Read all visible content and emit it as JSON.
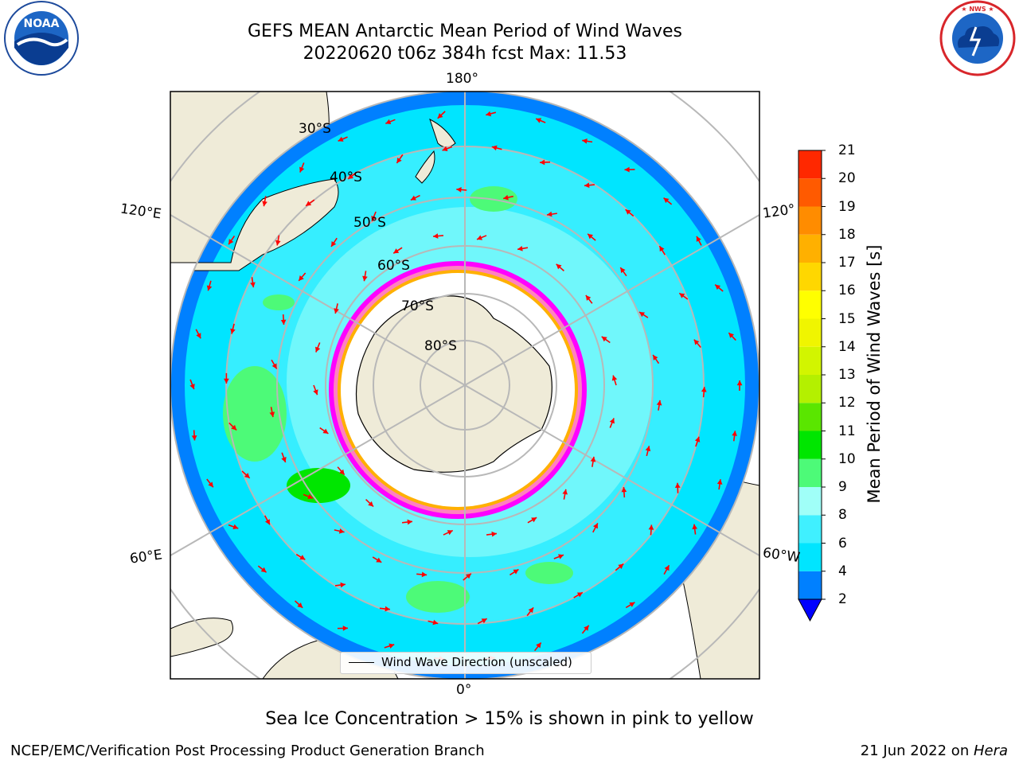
{
  "title": {
    "line1": "GEFS MEAN Antarctic Mean Period of Wind Waves",
    "line2": "20220620 t06z 384h fcst   Max: 11.53"
  },
  "logos": {
    "left": {
      "name": "noaa-logo",
      "text": "NOAA",
      "ring_text": "NATIONAL OCEANIC AND ATMOSPHERIC ADMINISTRATION · U.S. DEPARTMENT OF COMMERCE"
    },
    "right": {
      "name": "nws-logo",
      "ring_text": "NATIONAL WEATHER SERVICE"
    }
  },
  "map": {
    "projection": "south polar stereographic",
    "longitude_labels": {
      "top": "180°",
      "bottom": "0°",
      "upper_left": "120°E",
      "lower_left": "60°E",
      "upper_right": "120°",
      "lower_right": "60°W"
    },
    "latitude_labels": [
      "30°S",
      "40°S",
      "50°S",
      "60°S",
      "70°S",
      "80°S"
    ],
    "land_color": "#efebd8",
    "ocean_colors": {
      "2-4": "#0080ff",
      "4-6": "#00e5ff",
      "6-8": "#40f0ff",
      "8-9": "#a0fff8",
      "9-10": "#4dfa78",
      "10-11": "#00e600"
    },
    "ice_colors": [
      "#ff00ff",
      "#ff80c0",
      "#ffb000",
      "#ffff00"
    ],
    "arrow_color": "#ff0000"
  },
  "legend": {
    "label": "Wind Wave Direction (unscaled)"
  },
  "colorbar": {
    "label": "Mean Period of Wind Waves [s]",
    "ticks": [
      "2",
      "4",
      "6",
      "8",
      "9",
      "10",
      "11",
      "12",
      "13",
      "14",
      "15",
      "16",
      "17",
      "18",
      "19",
      "20",
      "21"
    ],
    "colors": [
      "#0080ff",
      "#00e5ff",
      "#40f0ff",
      "#a0fff8",
      "#4dfa78",
      "#00e600",
      "#5ae600",
      "#b4f000",
      "#d2f500",
      "#f0f500",
      "#ffff00",
      "#ffd700",
      "#ffb000",
      "#ff8c00",
      "#ff5a00",
      "#ff2800",
      "#ff0000"
    ],
    "extend_min_color": "#0000ff"
  },
  "caption": "Sea Ice Concentration > 15% is shown in pink to yellow",
  "footer": {
    "left": "NCEP/EMC/Verification Post Processing Product Generation Branch",
    "right_date": "21 Jun 2022 on ",
    "right_machine": "Hera"
  }
}
